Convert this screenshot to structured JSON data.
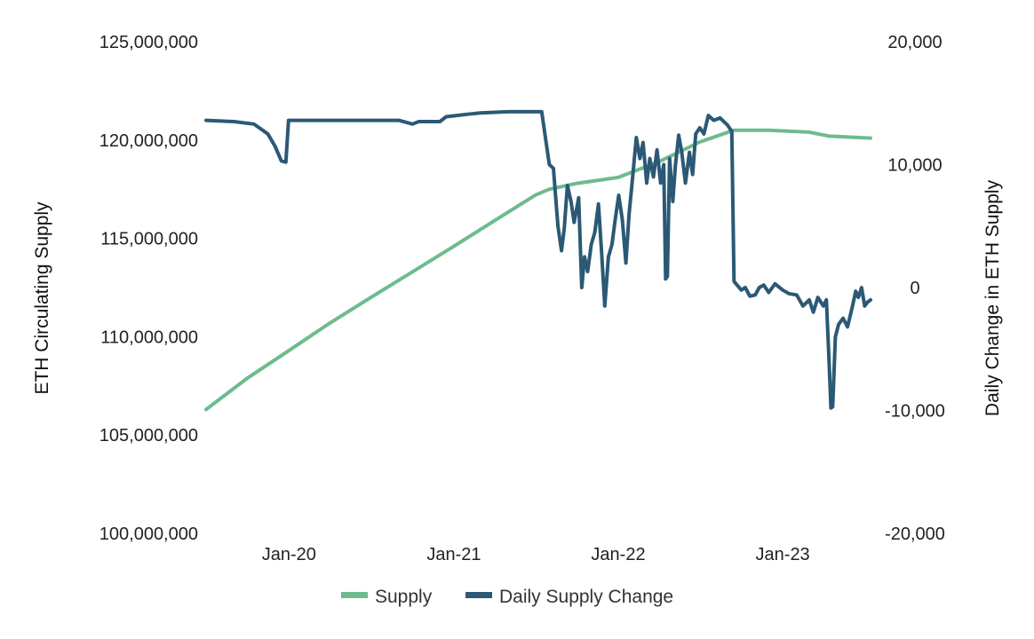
{
  "chart_data": {
    "type": "line",
    "y_left_label": "ETH Circulating Supply",
    "y_right_label": "Daily Change in ETH Supply",
    "y_left_range": [
      100000000,
      125000000
    ],
    "y_right_range": [
      -20000,
      20000
    ],
    "y_left_ticks": [
      "100,000,000",
      "105,000,000",
      "110,000,000",
      "115,000,000",
      "120,000,000",
      "125,000,000"
    ],
    "y_left_tick_values": [
      100000000,
      105000000,
      110000000,
      115000000,
      120000000,
      125000000
    ],
    "y_right_ticks": [
      "-20,000",
      "-10,000",
      "0",
      "10,000",
      "20,000"
    ],
    "y_right_tick_values": [
      -20000,
      -10000,
      0,
      10000,
      20000
    ],
    "x_range": [
      "2019-07-01",
      "2023-07-15"
    ],
    "x_ticks": [
      "Jan-20",
      "Jan-21",
      "Jan-22",
      "Jan-23"
    ],
    "x_tick_dates": [
      "2020-01-01",
      "2021-01-01",
      "2022-01-01",
      "2023-01-01"
    ],
    "grid": false,
    "legend_position": "bottom-center",
    "series": [
      {
        "name": "Supply",
        "axis": "left",
        "color": "#6dbb8e",
        "points": [
          [
            "2019-07-01",
            106300000
          ],
          [
            "2019-10-01",
            107900000
          ],
          [
            "2020-01-01",
            109300000
          ],
          [
            "2020-04-01",
            110700000
          ],
          [
            "2020-07-01",
            112000000
          ],
          [
            "2020-10-01",
            113300000
          ],
          [
            "2021-01-01",
            114600000
          ],
          [
            "2021-04-01",
            115900000
          ],
          [
            "2021-07-01",
            117200000
          ],
          [
            "2021-08-01",
            117500000
          ],
          [
            "2021-10-01",
            117800000
          ],
          [
            "2022-01-01",
            118100000
          ],
          [
            "2022-04-01",
            118900000
          ],
          [
            "2022-07-01",
            119900000
          ],
          [
            "2022-09-15",
            120500000
          ],
          [
            "2022-12-01",
            120500000
          ],
          [
            "2023-03-01",
            120400000
          ],
          [
            "2023-04-15",
            120200000
          ],
          [
            "2023-07-15",
            120100000
          ]
        ]
      },
      {
        "name": "Daily Supply Change",
        "axis": "right",
        "color": "#2b5975",
        "points": [
          [
            "2019-07-01",
            13600
          ],
          [
            "2019-09-01",
            13500
          ],
          [
            "2019-10-15",
            13300
          ],
          [
            "2019-11-15",
            12500
          ],
          [
            "2019-12-01",
            11500
          ],
          [
            "2019-12-15",
            10300
          ],
          [
            "2019-12-25",
            10200
          ],
          [
            "2019-12-31",
            13600
          ],
          [
            "2020-03-01",
            13600
          ],
          [
            "2020-06-01",
            13600
          ],
          [
            "2020-09-01",
            13600
          ],
          [
            "2020-10-01",
            13300
          ],
          [
            "2020-10-15",
            13500
          ],
          [
            "2020-12-01",
            13500
          ],
          [
            "2020-12-15",
            13900
          ],
          [
            "2021-02-01",
            14100
          ],
          [
            "2021-03-01",
            14200
          ],
          [
            "2021-05-01",
            14300
          ],
          [
            "2021-06-01",
            14300
          ],
          [
            "2021-07-15",
            14300
          ],
          [
            "2021-08-01",
            10000
          ],
          [
            "2021-08-10",
            9700
          ],
          [
            "2021-08-20",
            5000
          ],
          [
            "2021-08-28",
            3000
          ],
          [
            "2021-09-03",
            4800
          ],
          [
            "2021-09-10",
            8300
          ],
          [
            "2021-09-18",
            7000
          ],
          [
            "2021-09-25",
            5300
          ],
          [
            "2021-10-05",
            7300
          ],
          [
            "2021-10-12",
            0
          ],
          [
            "2021-10-18",
            2500
          ],
          [
            "2021-10-25",
            1300
          ],
          [
            "2021-11-02",
            3500
          ],
          [
            "2021-11-10",
            4500
          ],
          [
            "2021-11-18",
            6800
          ],
          [
            "2021-11-25",
            2800
          ],
          [
            "2021-12-02",
            -1500
          ],
          [
            "2021-12-10",
            2500
          ],
          [
            "2021-12-18",
            3500
          ],
          [
            "2021-12-25",
            5500
          ],
          [
            "2022-01-02",
            7500
          ],
          [
            "2022-01-10",
            5500
          ],
          [
            "2022-01-18",
            2000
          ],
          [
            "2022-01-25",
            6000
          ],
          [
            "2022-02-02",
            9000
          ],
          [
            "2022-02-10",
            12200
          ],
          [
            "2022-02-18",
            10500
          ],
          [
            "2022-02-25",
            11800
          ],
          [
            "2022-03-05",
            8500
          ],
          [
            "2022-03-12",
            10500
          ],
          [
            "2022-03-20",
            9000
          ],
          [
            "2022-03-28",
            11200
          ],
          [
            "2022-04-05",
            8500
          ],
          [
            "2022-04-12",
            10000
          ],
          [
            "2022-04-16",
            700
          ],
          [
            "2022-04-20",
            900
          ],
          [
            "2022-04-25",
            10500
          ],
          [
            "2022-05-02",
            7000
          ],
          [
            "2022-05-08",
            10000
          ],
          [
            "2022-05-15",
            12400
          ],
          [
            "2022-05-22",
            11000
          ],
          [
            "2022-05-30",
            8500
          ],
          [
            "2022-06-08",
            11000
          ],
          [
            "2022-06-15",
            9200
          ],
          [
            "2022-06-22",
            12500
          ],
          [
            "2022-07-01",
            13000
          ],
          [
            "2022-07-10",
            12500
          ],
          [
            "2022-07-20",
            14000
          ],
          [
            "2022-08-01",
            13600
          ],
          [
            "2022-08-15",
            13800
          ],
          [
            "2022-09-01",
            13200
          ],
          [
            "2022-09-10",
            12700
          ],
          [
            "2022-09-15",
            500
          ],
          [
            "2022-10-01",
            -200
          ],
          [
            "2022-10-10",
            0
          ],
          [
            "2022-10-20",
            -700
          ],
          [
            "2022-11-01",
            -600
          ],
          [
            "2022-11-10",
            0
          ],
          [
            "2022-11-20",
            200
          ],
          [
            "2022-12-01",
            -400
          ],
          [
            "2022-12-15",
            300
          ],
          [
            "2023-01-01",
            -200
          ],
          [
            "2023-01-15",
            -500
          ],
          [
            "2023-02-01",
            -600
          ],
          [
            "2023-02-15",
            -1500
          ],
          [
            "2023-03-01",
            -1000
          ],
          [
            "2023-03-10",
            -2000
          ],
          [
            "2023-03-20",
            -800
          ],
          [
            "2023-04-01",
            -1500
          ],
          [
            "2023-04-08",
            -1000
          ],
          [
            "2023-04-14",
            -6000
          ],
          [
            "2023-04-18",
            -9800
          ],
          [
            "2023-04-22",
            -9700
          ],
          [
            "2023-04-28",
            -4000
          ],
          [
            "2023-05-05",
            -3000
          ],
          [
            "2023-05-15",
            -2500
          ],
          [
            "2023-05-25",
            -3200
          ],
          [
            "2023-06-05",
            -1500
          ],
          [
            "2023-06-12",
            -300
          ],
          [
            "2023-06-18",
            -800
          ],
          [
            "2023-06-25",
            0
          ],
          [
            "2023-07-02",
            -1500
          ],
          [
            "2023-07-08",
            -1200
          ],
          [
            "2023-07-15",
            -1000
          ]
        ]
      }
    ]
  }
}
